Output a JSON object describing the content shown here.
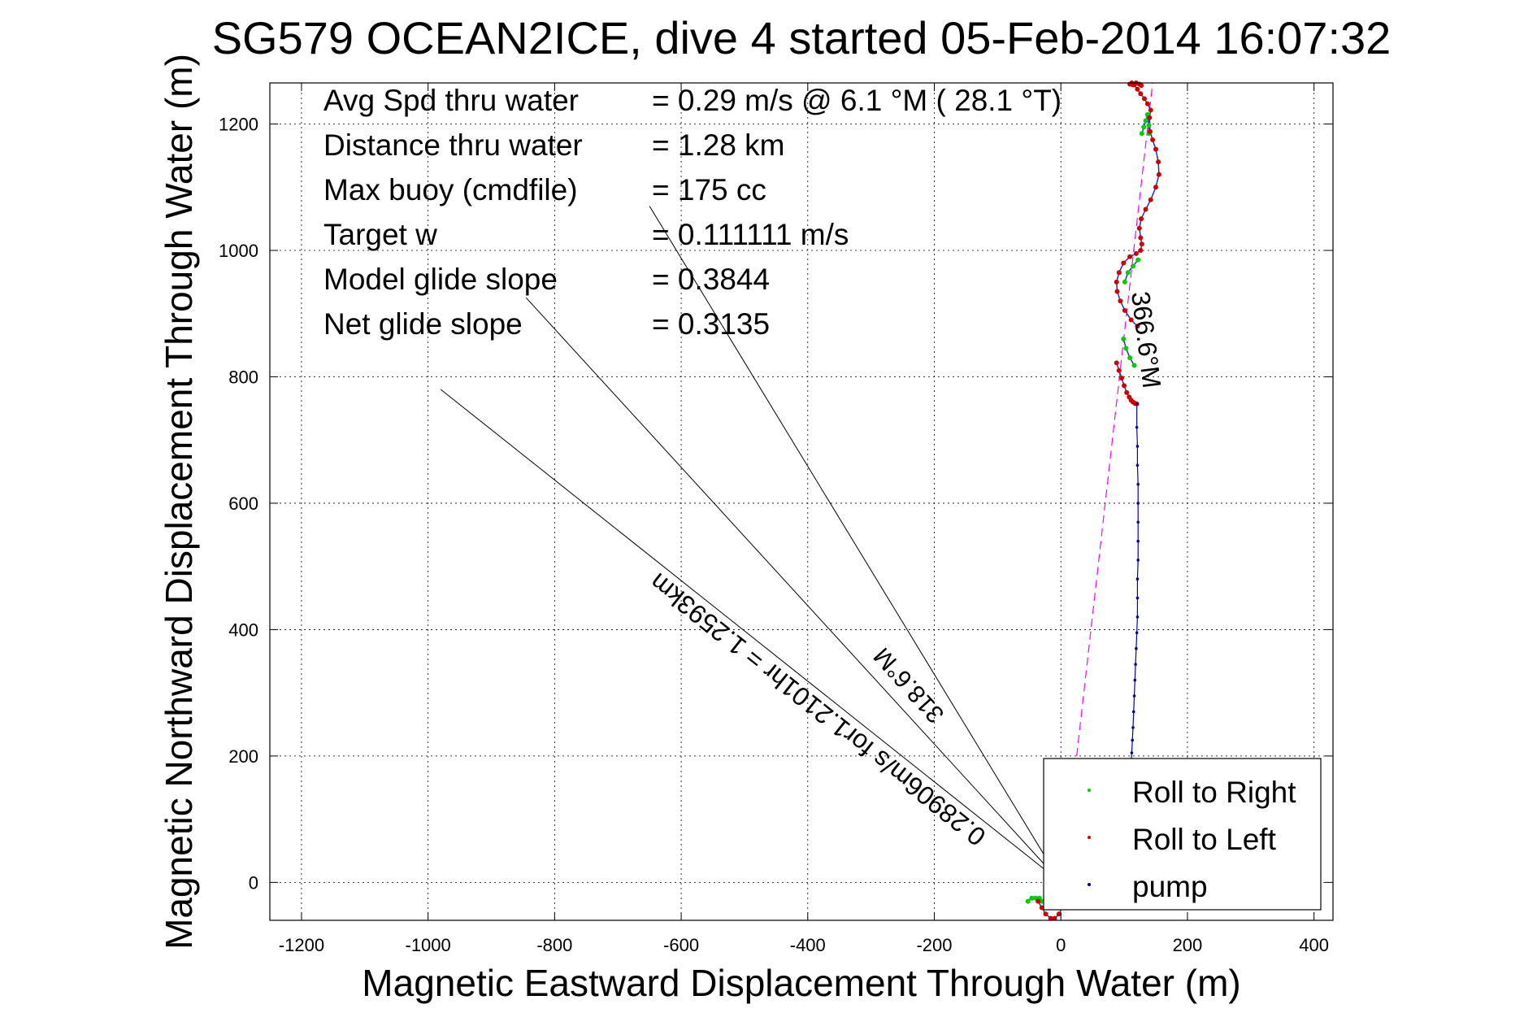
{
  "chart_data": {
    "type": "scatter",
    "title": "SG579 OCEAN2ICE, dive 4 started 05-Feb-2014 16:07:32",
    "xlabel": "Magnetic Eastward Displacement Through Water (m)",
    "ylabel": "Magnetic Northward Displacement Through Water (m)",
    "xlim": [
      -1250,
      430
    ],
    "ylim": [
      -60,
      1265
    ],
    "xticks": [
      -1200,
      -1000,
      -800,
      -600,
      -400,
      -200,
      0,
      200,
      400
    ],
    "yticks": [
      0,
      200,
      400,
      600,
      800,
      1000,
      1200
    ],
    "grid": true,
    "legend_position": "bottom-right",
    "stats": [
      {
        "label": "Avg Spd thru water",
        "value": "=  0.29 m/s @   6.1 °M ( 28.1 °T)"
      },
      {
        "label": "Distance thru water",
        "value": "=  1.28 km"
      },
      {
        "label": "Max buoy (cmdfile)",
        "value": "= 175 cc"
      },
      {
        "label": "Target w",
        "value": "= 0.111111 m/s"
      },
      {
        "label": "Model glide slope",
        "value": "= 0.3844"
      },
      {
        "label": "Net glide slope",
        "value": "= 0.3135"
      }
    ],
    "annotations": {
      "heading_label": "366.6°M",
      "current_heading_label": "318.6°M",
      "current_label": "0.28906m/s for1.2101hr = 1.2593km"
    },
    "guide_lines": [
      {
        "name": "current-ray-a",
        "from": [
          0,
          0
        ],
        "to": [
          -980,
          780
        ]
      },
      {
        "name": "current-ray-b",
        "from": [
          0,
          0
        ],
        "to": [
          -845,
          925
        ]
      },
      {
        "name": "current-ray-c",
        "from": [
          0,
          0
        ],
        "to": [
          -650,
          1070
        ]
      }
    ],
    "heading_line": {
      "from": [
        25,
        200
      ],
      "to": [
        145,
        1265
      ]
    },
    "series": [
      {
        "name": "Roll to Right",
        "color": "#00cc00",
        "x": [
          -52,
          -46,
          -40,
          -34,
          -30,
          137,
          134,
          131,
          128,
          122,
          114,
          106,
          101,
          99,
          103,
          109,
          116,
          138,
          139,
          139
        ],
        "y": [
          -30,
          -25,
          -25,
          -25,
          -30,
          1215,
          1205,
          1195,
          1185,
          985,
          975,
          965,
          950,
          860,
          845,
          830,
          818,
          1212,
          1198,
          1185
        ]
      },
      {
        "name": "Roll to Left",
        "color": "#cc0000",
        "x": [
          -36,
          -30,
          -24,
          -16,
          -10,
          -3,
          2,
          88,
          92,
          96,
          100,
          104,
          108,
          111,
          114,
          117,
          120,
          121,
          111,
          101,
          94,
          89,
          88,
          92,
          99,
          109,
          119,
          126,
          128,
          126,
          124,
          127,
          134,
          142,
          150,
          155,
          154,
          150,
          145,
          141,
          140,
          142,
          137,
          132,
          126,
          121,
          116,
          112,
          109,
          114,
          119,
          124,
          127
        ],
        "y": [
          -30,
          -40,
          -50,
          -57,
          -57,
          -50,
          -40,
          822,
          810,
          798,
          786,
          775,
          768,
          763,
          760,
          758,
          757,
          880,
          890,
          905,
          920,
          935,
          950,
          965,
          980,
          990,
          995,
          1000,
          1010,
          1020,
          1035,
          1050,
          1065,
          1080,
          1100,
          1120,
          1140,
          1160,
          1175,
          1188,
          1210,
          1222,
          1232,
          1240,
          1248,
          1255,
          1262,
          1265,
          1263,
          1262,
          1265,
          1263,
          1261
        ]
      },
      {
        "name": "pump",
        "color": "#00008b",
        "x": [
          120,
          120,
          121,
          121,
          122,
          122,
          122,
          122,
          122,
          121,
          121,
          121,
          120,
          119,
          118,
          117,
          116,
          115,
          114,
          113,
          112,
          111,
          110
        ],
        "y": [
          757,
          720,
          690,
          660,
          630,
          600,
          570,
          540,
          510,
          480,
          450,
          420,
          395,
          370,
          345,
          320,
          295,
          270,
          245,
          225,
          205,
          190,
          175
        ]
      }
    ]
  }
}
